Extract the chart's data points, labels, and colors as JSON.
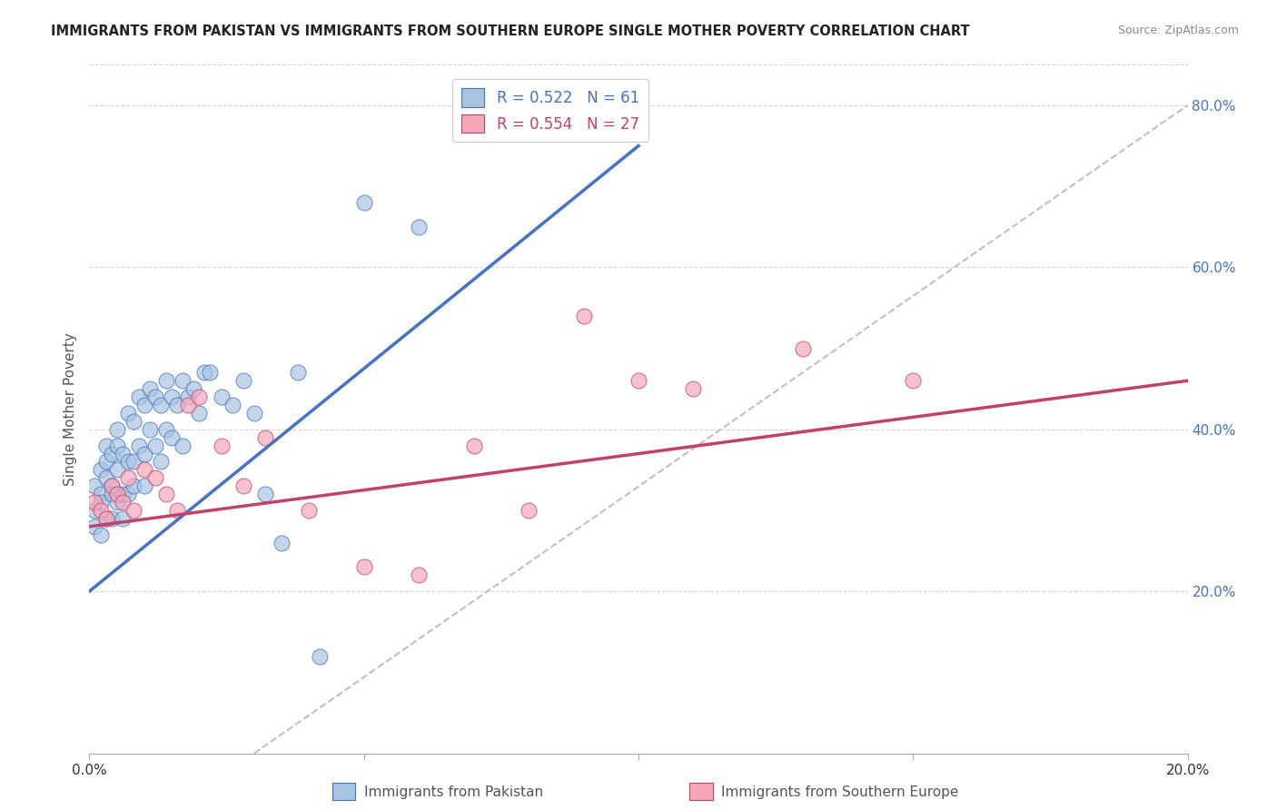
{
  "title": "IMMIGRANTS FROM PAKISTAN VS IMMIGRANTS FROM SOUTHERN EUROPE SINGLE MOTHER POVERTY CORRELATION CHART",
  "source": "Source: ZipAtlas.com",
  "ylabel": "Single Mother Poverty",
  "xlim": [
    0.0,
    0.2
  ],
  "ylim": [
    0.0,
    0.85
  ],
  "pakistan_R": 0.522,
  "pakistan_N": 61,
  "southern_europe_R": 0.554,
  "southern_europe_N": 27,
  "pakistan_color": "#a8c4e0",
  "pakistan_line_color": "#4472c4",
  "southern_europe_color": "#f4a7b9",
  "southern_europe_line_color": "#c0426a",
  "ref_line_color": "#c0c0c0",
  "legend_label_pakistan": "Immigrants from Pakistan",
  "legend_label_southern_europe": "Immigrants from Southern Europe",
  "pak_line_x0": 0.0,
  "pak_line_y0": 0.2,
  "pak_line_x1": 0.1,
  "pak_line_y1": 0.75,
  "se_line_x0": 0.0,
  "se_line_y0": 0.28,
  "se_line_x1": 0.2,
  "se_line_y1": 0.46,
  "pakistan_x": [
    0.001,
    0.001,
    0.001,
    0.002,
    0.002,
    0.002,
    0.002,
    0.003,
    0.003,
    0.003,
    0.003,
    0.004,
    0.004,
    0.004,
    0.004,
    0.005,
    0.005,
    0.005,
    0.005,
    0.006,
    0.006,
    0.006,
    0.007,
    0.007,
    0.007,
    0.008,
    0.008,
    0.008,
    0.009,
    0.009,
    0.01,
    0.01,
    0.01,
    0.011,
    0.011,
    0.012,
    0.012,
    0.013,
    0.013,
    0.014,
    0.014,
    0.015,
    0.015,
    0.016,
    0.017,
    0.017,
    0.018,
    0.019,
    0.02,
    0.021,
    0.022,
    0.024,
    0.026,
    0.028,
    0.03,
    0.032,
    0.035,
    0.038,
    0.042,
    0.05,
    0.06
  ],
  "pakistan_y": [
    0.3,
    0.28,
    0.33,
    0.32,
    0.27,
    0.35,
    0.31,
    0.36,
    0.29,
    0.34,
    0.38,
    0.33,
    0.37,
    0.29,
    0.32,
    0.4,
    0.35,
    0.31,
    0.38,
    0.37,
    0.32,
    0.29,
    0.42,
    0.36,
    0.32,
    0.41,
    0.36,
    0.33,
    0.44,
    0.38,
    0.43,
    0.37,
    0.33,
    0.45,
    0.4,
    0.44,
    0.38,
    0.43,
    0.36,
    0.46,
    0.4,
    0.44,
    0.39,
    0.43,
    0.46,
    0.38,
    0.44,
    0.45,
    0.42,
    0.47,
    0.47,
    0.44,
    0.43,
    0.46,
    0.42,
    0.32,
    0.26,
    0.47,
    0.12,
    0.68,
    0.65
  ],
  "southern_europe_x": [
    0.001,
    0.002,
    0.003,
    0.004,
    0.005,
    0.006,
    0.007,
    0.008,
    0.01,
    0.012,
    0.014,
    0.016,
    0.018,
    0.02,
    0.024,
    0.028,
    0.032,
    0.04,
    0.05,
    0.06,
    0.07,
    0.08,
    0.09,
    0.1,
    0.11,
    0.13,
    0.15
  ],
  "southern_europe_y": [
    0.31,
    0.3,
    0.29,
    0.33,
    0.32,
    0.31,
    0.34,
    0.3,
    0.35,
    0.34,
    0.32,
    0.3,
    0.43,
    0.44,
    0.38,
    0.33,
    0.39,
    0.3,
    0.23,
    0.22,
    0.38,
    0.3,
    0.54,
    0.46,
    0.45,
    0.5,
    0.46
  ]
}
